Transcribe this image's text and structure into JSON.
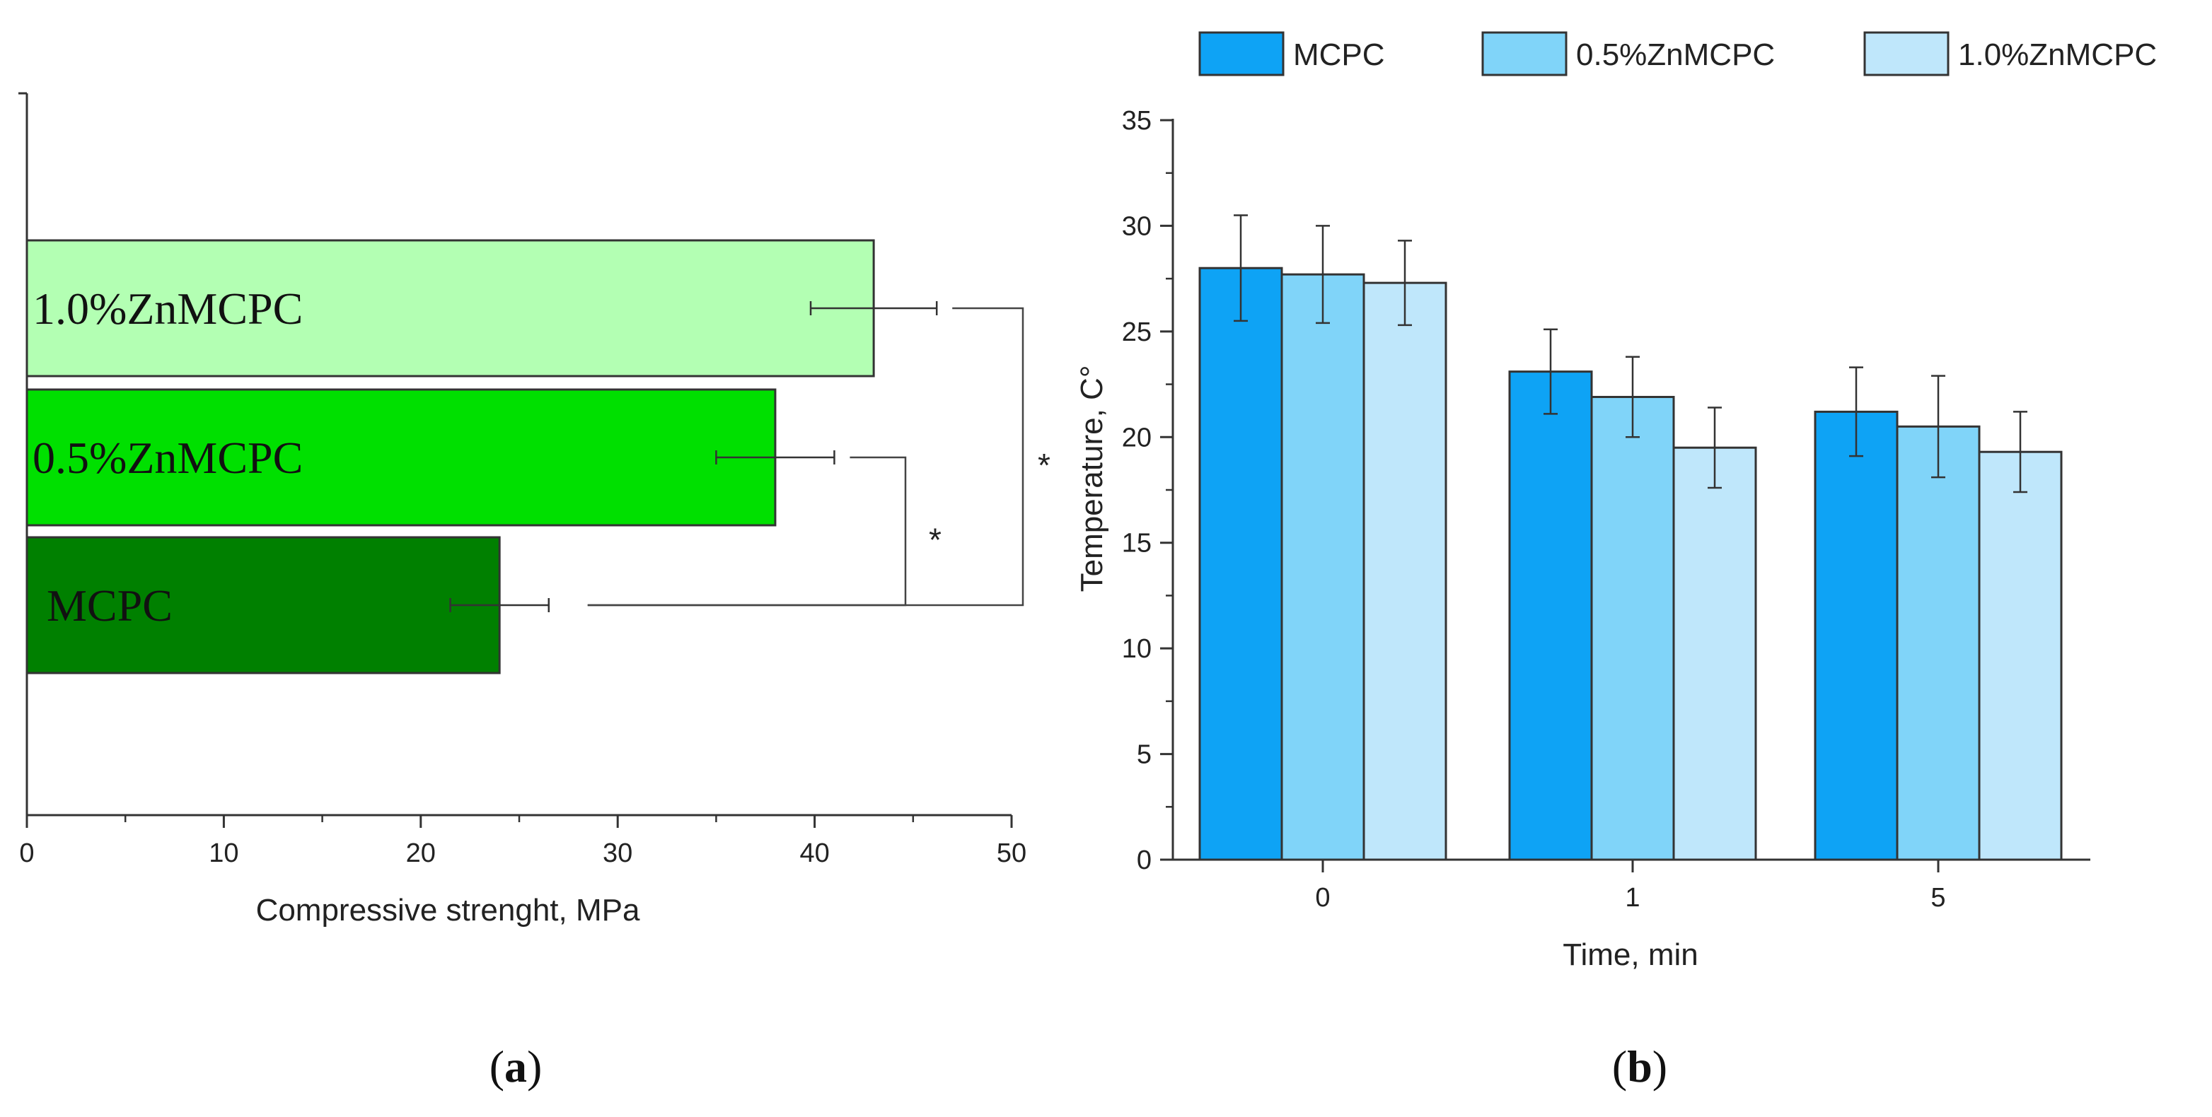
{
  "panels": {
    "a": {
      "open": "(",
      "letter": "a",
      "close": ")"
    },
    "b": {
      "open": "(",
      "letter": "b",
      "close": ")"
    }
  },
  "chart_data": [
    {
      "type": "bar",
      "orientation": "horizontal",
      "categories": [
        "MCPC",
        "0.5%ZnMCPC",
        "1.0%ZnMCPC"
      ],
      "values": [
        24,
        38,
        43
      ],
      "errors": [
        2.5,
        3,
        3.2
      ],
      "colors": [
        "#008000",
        "#00e000",
        "#b3ffb3"
      ],
      "title": "",
      "xlabel": "Compressive strenght, MPa",
      "ylabel": "",
      "xlim": [
        0,
        50
      ],
      "xticks": [
        "0",
        "10",
        "20",
        "30",
        "40",
        "50"
      ],
      "significance": [
        {
          "from": "MCPC",
          "to": "0.5%ZnMCPC",
          "label": "*"
        },
        {
          "from": "MCPC",
          "to": "1.0%ZnMCPC",
          "label": "*"
        }
      ],
      "grid": false,
      "legend": "none"
    },
    {
      "type": "bar",
      "categories": [
        "0",
        "1",
        "5"
      ],
      "series": [
        {
          "name": "MCPC",
          "values": [
            28,
            23.1,
            21.2
          ],
          "errors": [
            2.5,
            2,
            2.1
          ],
          "color": "#0ea3f5"
        },
        {
          "name": "0.5%ZnMCPC",
          "values": [
            27.7,
            21.9,
            20.5
          ],
          "errors": [
            2.3,
            1.9,
            2.4
          ],
          "color": "#80d4f9"
        },
        {
          "name": "1.0%ZnMCPC",
          "values": [
            27.3,
            19.5,
            19.3
          ],
          "errors": [
            2,
            1.9,
            1.9
          ],
          "color": "#bfe7fb"
        }
      ],
      "title": "",
      "xlabel": "Time, min",
      "ylabel": "Temperature, C°",
      "ylim": [
        0,
        35
      ],
      "yticks": [
        "0",
        "5",
        "10",
        "15",
        "20",
        "25",
        "30",
        "35"
      ],
      "grid": false,
      "legend": "top"
    }
  ]
}
